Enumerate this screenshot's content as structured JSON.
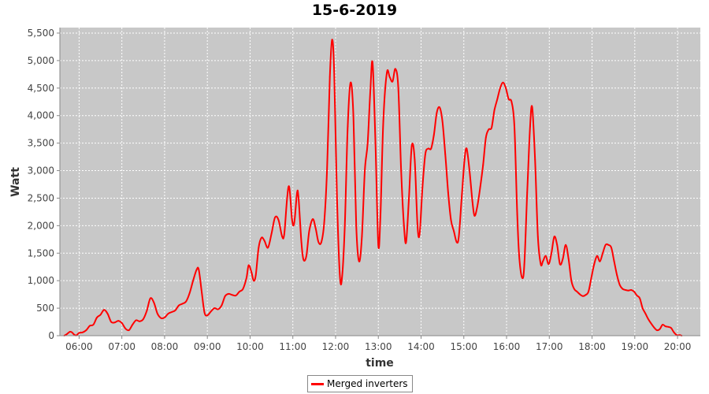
{
  "chart_data": {
    "type": "line",
    "title": "15-6-2019",
    "xlabel": "time",
    "ylabel": "Watt",
    "ylim": [
      0,
      5600
    ],
    "xlim": [
      "05:33",
      "20:32"
    ],
    "grid": true,
    "legend_placement": "bottom",
    "x_ticks": [
      "06:00",
      "07:00",
      "08:00",
      "09:00",
      "10:00",
      "11:00",
      "12:00",
      "13:00",
      "14:00",
      "15:00",
      "16:00",
      "17:00",
      "18:00",
      "19:00",
      "20:00"
    ],
    "y_ticks": [
      "0",
      "500",
      "1,000",
      "1,500",
      "2,000",
      "2,500",
      "3,000",
      "3,500",
      "4,000",
      "4,500",
      "5,000",
      "5,500"
    ],
    "y_tick_values": [
      0,
      500,
      1000,
      1500,
      2000,
      2500,
      3000,
      3500,
      4000,
      4500,
      5000,
      5500
    ],
    "colors": {
      "plot_background": "#c8c8c8",
      "grid": "#ffffff",
      "series": "#ff0000"
    },
    "series": [
      {
        "name": "Merged inverters",
        "color": "#ff0000",
        "points": [
          [
            "05:39",
            0
          ],
          [
            "05:43",
            30
          ],
          [
            "05:47",
            70
          ],
          [
            "05:50",
            60
          ],
          [
            "05:53",
            20
          ],
          [
            "05:56",
            5
          ],
          [
            "06:00",
            50
          ],
          [
            "06:05",
            60
          ],
          [
            "06:10",
            100
          ],
          [
            "06:15",
            180
          ],
          [
            "06:20",
            200
          ],
          [
            "06:25",
            330
          ],
          [
            "06:30",
            380
          ],
          [
            "06:35",
            470
          ],
          [
            "06:40",
            400
          ],
          [
            "06:45",
            250
          ],
          [
            "06:50",
            240
          ],
          [
            "06:55",
            270
          ],
          [
            "07:00",
            230
          ],
          [
            "07:05",
            130
          ],
          [
            "07:10",
            100
          ],
          [
            "07:15",
            200
          ],
          [
            "07:20",
            280
          ],
          [
            "07:25",
            260
          ],
          [
            "07:30",
            300
          ],
          [
            "07:35",
            450
          ],
          [
            "07:40",
            680
          ],
          [
            "07:45",
            600
          ],
          [
            "07:50",
            400
          ],
          [
            "07:55",
            320
          ],
          [
            "08:00",
            330
          ],
          [
            "08:05",
            400
          ],
          [
            "08:10",
            430
          ],
          [
            "08:15",
            460
          ],
          [
            "08:20",
            550
          ],
          [
            "08:25",
            580
          ],
          [
            "08:30",
            620
          ],
          [
            "08:35",
            770
          ],
          [
            "08:40",
            1000
          ],
          [
            "08:45",
            1200
          ],
          [
            "08:48",
            1200
          ],
          [
            "08:52",
            800
          ],
          [
            "08:56",
            420
          ],
          [
            "09:00",
            370
          ],
          [
            "09:05",
            440
          ],
          [
            "09:10",
            500
          ],
          [
            "09:15",
            480
          ],
          [
            "09:20",
            550
          ],
          [
            "09:25",
            720
          ],
          [
            "09:30",
            760
          ],
          [
            "09:35",
            740
          ],
          [
            "09:40",
            730
          ],
          [
            "09:45",
            800
          ],
          [
            "09:50",
            850
          ],
          [
            "09:55",
            1050
          ],
          [
            "09:58",
            1280
          ],
          [
            "10:02",
            1150
          ],
          [
            "10:05",
            1000
          ],
          [
            "10:08",
            1100
          ],
          [
            "10:12",
            1600
          ],
          [
            "10:16",
            1780
          ],
          [
            "10:20",
            1730
          ],
          [
            "10:25",
            1600
          ],
          [
            "10:30",
            1850
          ],
          [
            "10:35",
            2150
          ],
          [
            "10:40",
            2100
          ],
          [
            "10:45",
            1800
          ],
          [
            "10:48",
            1850
          ],
          [
            "10:52",
            2500
          ],
          [
            "10:55",
            2700
          ],
          [
            "10:59",
            2100
          ],
          [
            "11:02",
            2050
          ],
          [
            "11:06",
            2600
          ],
          [
            "11:08",
            2500
          ],
          [
            "11:12",
            1700
          ],
          [
            "11:15",
            1380
          ],
          [
            "11:19",
            1450
          ],
          [
            "11:23",
            1900
          ],
          [
            "11:28",
            2120
          ],
          [
            "11:32",
            1950
          ],
          [
            "11:36",
            1700
          ],
          [
            "11:40",
            1700
          ],
          [
            "11:44",
            2050
          ],
          [
            "11:48",
            3000
          ],
          [
            "11:52",
            4700
          ],
          [
            "11:55",
            5380
          ],
          [
            "11:58",
            4800
          ],
          [
            "12:02",
            2500
          ],
          [
            "12:06",
            1100
          ],
          [
            "12:09",
            1050
          ],
          [
            "12:13",
            2000
          ],
          [
            "12:17",
            3800
          ],
          [
            "12:21",
            4600
          ],
          [
            "12:25",
            4000
          ],
          [
            "12:29",
            2000
          ],
          [
            "12:33",
            1350
          ],
          [
            "12:37",
            1800
          ],
          [
            "12:41",
            3000
          ],
          [
            "12:45",
            3500
          ],
          [
            "12:49",
            4500
          ],
          [
            "12:52",
            4950
          ],
          [
            "12:56",
            3500
          ],
          [
            "13:00",
            1650
          ],
          [
            "13:03",
            2200
          ],
          [
            "13:07",
            3900
          ],
          [
            "13:12",
            4780
          ],
          [
            "13:16",
            4700
          ],
          [
            "13:20",
            4620
          ],
          [
            "13:24",
            4850
          ],
          [
            "13:28",
            4500
          ],
          [
            "13:32",
            3000
          ],
          [
            "13:36",
            2000
          ],
          [
            "13:39",
            1700
          ],
          [
            "13:43",
            2500
          ],
          [
            "13:47",
            3450
          ],
          [
            "13:51",
            3200
          ],
          [
            "13:55",
            2000
          ],
          [
            "13:58",
            1850
          ],
          [
            "14:02",
            2700
          ],
          [
            "14:06",
            3300
          ],
          [
            "14:10",
            3400
          ],
          [
            "14:14",
            3400
          ],
          [
            "14:18",
            3650
          ],
          [
            "14:22",
            4050
          ],
          [
            "14:26",
            4150
          ],
          [
            "14:30",
            3900
          ],
          [
            "14:34",
            3300
          ],
          [
            "14:38",
            2600
          ],
          [
            "14:42",
            2100
          ],
          [
            "14:46",
            1900
          ],
          [
            "14:50",
            1700
          ],
          [
            "14:53",
            1800
          ],
          [
            "14:57",
            2500
          ],
          [
            "15:01",
            3200
          ],
          [
            "15:04",
            3400
          ],
          [
            "15:08",
            3000
          ],
          [
            "15:12",
            2450
          ],
          [
            "15:15",
            2180
          ],
          [
            "15:19",
            2350
          ],
          [
            "15:23",
            2700
          ],
          [
            "15:27",
            3100
          ],
          [
            "15:31",
            3600
          ],
          [
            "15:35",
            3750
          ],
          [
            "15:39",
            3780
          ],
          [
            "15:43",
            4100
          ],
          [
            "15:47",
            4300
          ],
          [
            "15:51",
            4500
          ],
          [
            "15:55",
            4600
          ],
          [
            "15:59",
            4500
          ],
          [
            "16:03",
            4300
          ],
          [
            "16:07",
            4250
          ],
          [
            "16:11",
            3800
          ],
          [
            "16:15",
            2200
          ],
          [
            "16:18",
            1400
          ],
          [
            "16:22",
            1050
          ],
          [
            "16:25",
            1300
          ],
          [
            "16:29",
            2600
          ],
          [
            "16:33",
            3800
          ],
          [
            "16:36",
            4150
          ],
          [
            "16:40",
            3200
          ],
          [
            "16:44",
            1800
          ],
          [
            "16:48",
            1300
          ],
          [
            "16:51",
            1350
          ],
          [
            "16:55",
            1450
          ],
          [
            "16:59",
            1300
          ],
          [
            "17:03",
            1500
          ],
          [
            "17:07",
            1800
          ],
          [
            "17:11",
            1650
          ],
          [
            "17:15",
            1300
          ],
          [
            "17:19",
            1400
          ],
          [
            "17:23",
            1650
          ],
          [
            "17:27",
            1400
          ],
          [
            "17:31",
            1000
          ],
          [
            "17:35",
            850
          ],
          [
            "17:39",
            800
          ],
          [
            "17:43",
            750
          ],
          [
            "17:47",
            720
          ],
          [
            "17:51",
            740
          ],
          [
            "17:55",
            800
          ],
          [
            "17:59",
            1050
          ],
          [
            "18:03",
            1300
          ],
          [
            "18:07",
            1450
          ],
          [
            "18:11",
            1350
          ],
          [
            "18:15",
            1500
          ],
          [
            "18:19",
            1650
          ],
          [
            "18:23",
            1650
          ],
          [
            "18:27",
            1600
          ],
          [
            "18:31",
            1350
          ],
          [
            "18:35",
            1100
          ],
          [
            "18:39",
            920
          ],
          [
            "18:43",
            850
          ],
          [
            "18:47",
            830
          ],
          [
            "18:51",
            820
          ],
          [
            "18:55",
            830
          ],
          [
            "18:59",
            800
          ],
          [
            "19:03",
            730
          ],
          [
            "19:07",
            680
          ],
          [
            "19:11",
            500
          ],
          [
            "19:15",
            400
          ],
          [
            "19:19",
            300
          ],
          [
            "19:23",
            220
          ],
          [
            "19:27",
            150
          ],
          [
            "19:31",
            100
          ],
          [
            "19:35",
            120
          ],
          [
            "19:39",
            200
          ],
          [
            "19:43",
            170
          ],
          [
            "19:47",
            160
          ],
          [
            "19:51",
            140
          ],
          [
            "19:55",
            60
          ],
          [
            "19:59",
            10
          ],
          [
            "20:03",
            10
          ],
          [
            "20:06",
            0
          ]
        ]
      }
    ]
  }
}
